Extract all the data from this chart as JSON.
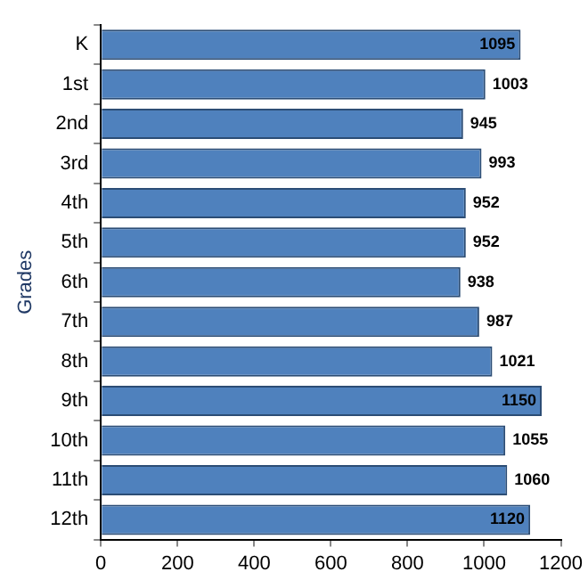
{
  "chart_data": {
    "type": "bar",
    "orientation": "horizontal",
    "ylabel": "Grades",
    "categories": [
      "K",
      "1st",
      "2nd",
      "3rd",
      "4th",
      "5th",
      "6th",
      "7th",
      "8th",
      "9th",
      "10th",
      "11th",
      "12th"
    ],
    "values": [
      1095,
      1003,
      945,
      993,
      952,
      952,
      938,
      987,
      1021,
      1150,
      1055,
      1060,
      1120
    ],
    "color": "#4f81bd",
    "xlim": [
      0,
      1200
    ],
    "xticks": [
      0,
      200,
      400,
      600,
      800,
      1000,
      1200
    ],
    "grid": false,
    "data_labels": true,
    "legend": false
  }
}
